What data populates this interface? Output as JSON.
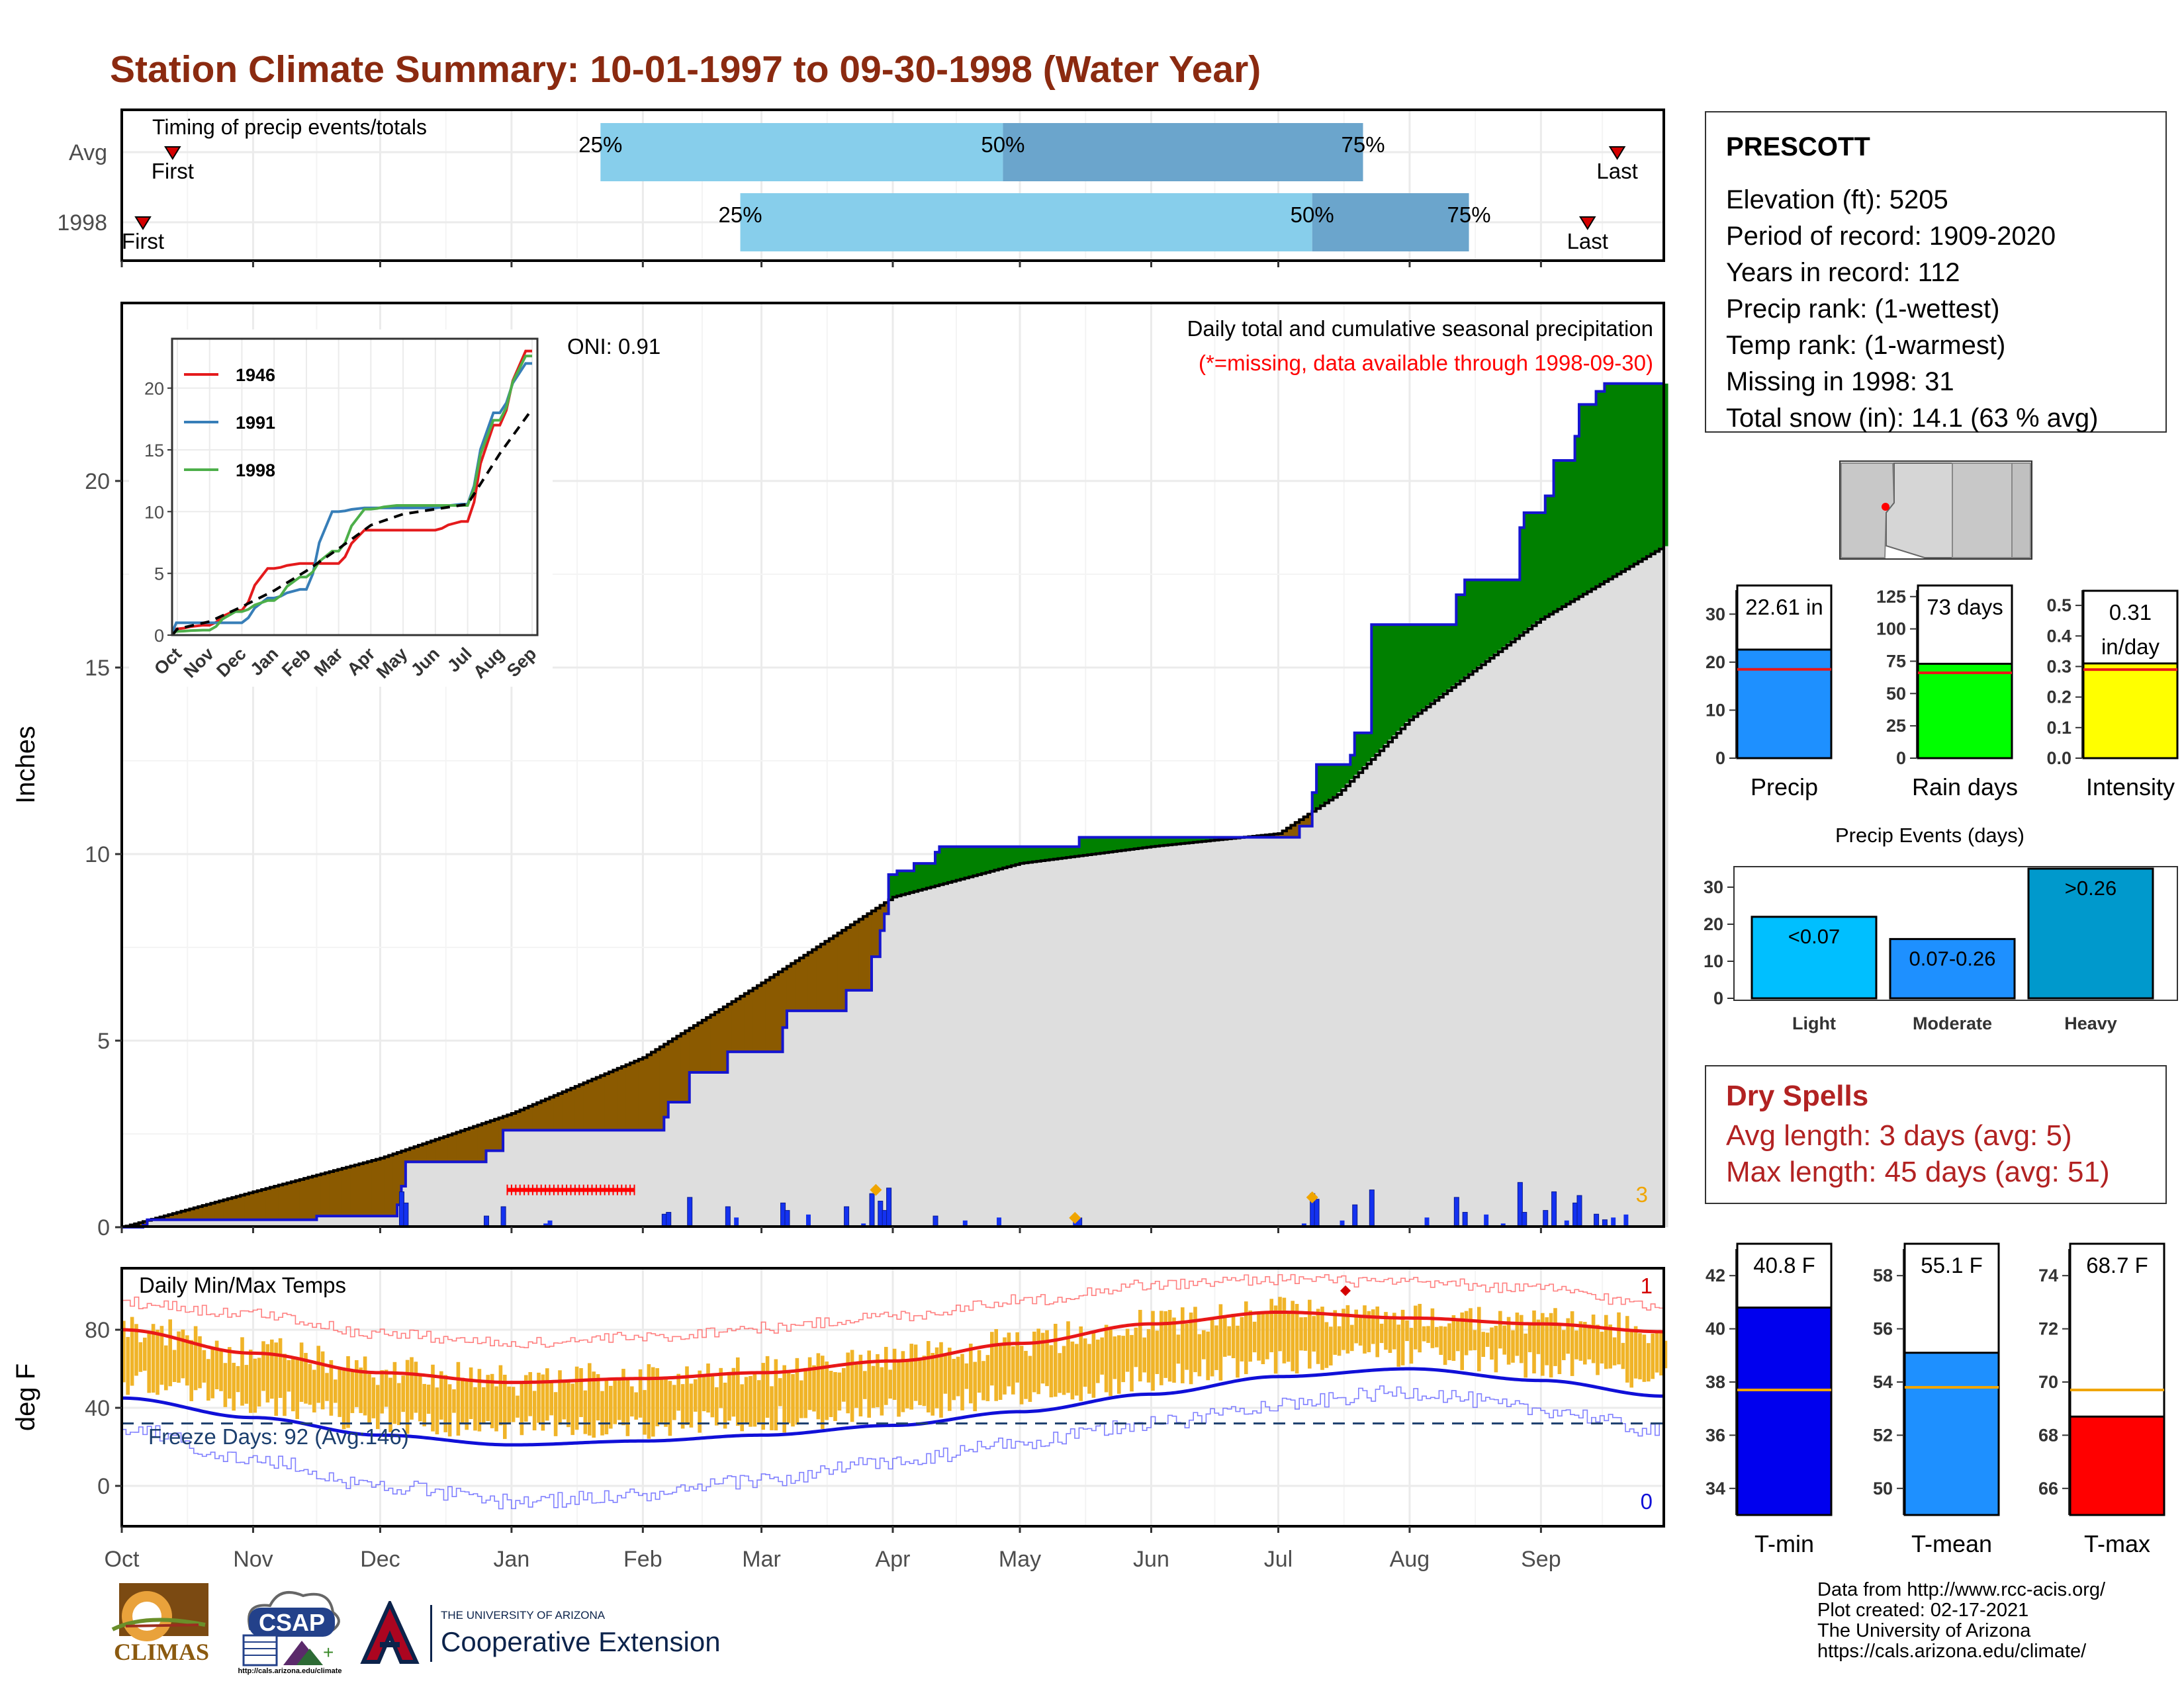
{
  "title": "Station Climate Summary: 10-01-1997 to 09-30-1998 (Water Year)",
  "colors": {
    "title": "#8b2a10",
    "light_blue": "#87ceeb",
    "mid_blue": "#6ba5cc",
    "brown": "#8b5a00",
    "green": "#008000",
    "grey_fill": "#dedede",
    "line_blue": "#1515d0",
    "bar_blue": "#1432f0",
    "orange": "#f0a500",
    "temp_bar": "#f0b428",
    "red": "#ee1c1c",
    "dry_spell": "#b22222"
  },
  "timing_panel": {
    "label": "Timing of precip events/totals",
    "rows": [
      "Avg",
      "1998"
    ],
    "first_label": "First",
    "last_label": "Last",
    "q25": "25%",
    "q50": "50%",
    "q75": "75%"
  },
  "precip_panel": {
    "ylabel": "Inches",
    "y_ticks": [
      "0",
      "5",
      "10",
      "15",
      "20"
    ],
    "subtitle": "Daily total and cumulative seasonal precipitation",
    "missing_note": "(*=missing, data available through 1998-09-30)",
    "oni": "ONI: 0.91",
    "corner_count": "3",
    "inset": {
      "series": [
        "1946",
        "1991",
        "1998"
      ],
      "series_colors": [
        "#e41a1c",
        "#377eb8",
        "#4daf4a"
      ],
      "y_ticks": [
        "0",
        "5",
        "10",
        "15",
        "20"
      ],
      "x_ticks": [
        "Oct",
        "Nov",
        "Dec",
        "Jan",
        "Feb",
        "Mar",
        "Apr",
        "May",
        "Jun",
        "Jul",
        "Aug",
        "Sep"
      ]
    }
  },
  "temp_panel": {
    "ylabel": "deg F",
    "label": "Daily Min/Max Temps",
    "y_ticks": [
      "80",
      "40",
      "0"
    ],
    "freeze_days": "Freeze Days: 92 (Avg:146)",
    "top_count": "1",
    "bottom_count": "0"
  },
  "x_months": [
    "Oct",
    "Nov",
    "Dec",
    "Jan",
    "Feb",
    "Mar",
    "Apr",
    "May",
    "Jun",
    "Jul",
    "Aug",
    "Sep"
  ],
  "station": {
    "name": "PRESCOTT",
    "lines": [
      "Elevation (ft): 5205",
      "Period of record: 1909-2020",
      "Years in record: 112",
      "Precip rank:  (1-wettest)",
      "Temp rank:  (1-warmest)",
      "Missing in 1998: 31",
      "Total snow (in): 14.1 (63 % avg)"
    ]
  },
  "gauges": {
    "precip": {
      "label": "Precip",
      "value_label": "22.61 in",
      "ticks": [
        "0",
        "10",
        "20",
        "30"
      ]
    },
    "rain_days": {
      "label": "Rain days",
      "value_label": "73 days",
      "ticks": [
        "0",
        "25",
        "50",
        "75",
        "100",
        "125"
      ]
    },
    "intensity": {
      "label": "Intensity",
      "value_label_1": "0.31",
      "value_label_2": "in/day",
      "ticks": [
        "0.0",
        "0.1",
        "0.2",
        "0.3",
        "0.4",
        "0.5"
      ]
    }
  },
  "events": {
    "title": "Precip Events (days)",
    "ticks": [
      "0",
      "10",
      "20",
      "30"
    ],
    "bars": [
      {
        "label": "Light",
        "bar_label": "<0.07",
        "color": "#00bfff"
      },
      {
        "label": "Moderate",
        "bar_label": "0.07-0.26",
        "color": "#1e90ff"
      },
      {
        "label": "Heavy",
        "bar_label": ">0.26",
        "color": "#0099cc"
      }
    ]
  },
  "dry_spells": {
    "title": "Dry Spells",
    "avg_length": "Avg length: 3 days (avg: 5)",
    "max_length": "Max length: 45 days (avg: 51)"
  },
  "temp_gauges": {
    "tmin": {
      "label": "T-min",
      "value_label": "40.8 F",
      "ticks": [
        "34",
        "36",
        "38",
        "40",
        "42"
      ]
    },
    "tmean": {
      "label": "T-mean",
      "value_label": "55.1 F",
      "ticks": [
        "50",
        "52",
        "54",
        "56",
        "58"
      ]
    },
    "tmax": {
      "label": "T-max",
      "value_label": "68.7 F",
      "ticks": [
        "66",
        "68",
        "70",
        "72",
        "74"
      ]
    }
  },
  "footer": {
    "lines": [
      "Data from http://www.rcc-acis.org/",
      "Plot created: 02-17-2021",
      "The University of Arizona",
      "https://cals.arizona.edu/climate/"
    ],
    "logos": {
      "climas": "CLIMAS",
      "csap": "CSAP",
      "csap_url": "http://cals.arizona.edu/climate",
      "ua_line1": "THE UNIVERSITY OF ARIZONA",
      "ua_line2": "Cooperative Extension"
    }
  },
  "chart_data": [
    {
      "id": "timing",
      "type": "bar",
      "rows": [
        {
          "name": "Avg",
          "first": "1997-10-13",
          "q25": "1998-01-22",
          "q50": "1998-04-27",
          "q75": "1998-07-21",
          "last": "1998-09-19"
        },
        {
          "name": "1998",
          "first": "1997-10-06",
          "q25": "1998-02-24",
          "q50": "1998-07-09",
          "q75": "1998-08-15",
          "last": "1998-09-12"
        }
      ]
    },
    {
      "id": "precip",
      "type": "area",
      "x_range": [
        "1997-10-01",
        "1998-09-30"
      ],
      "ylim": [
        0,
        25
      ],
      "actual_cumulative": [
        [
          "1997-10-01",
          0
        ],
        [
          "1997-10-06",
          0.05
        ],
        [
          "1997-10-07",
          0.2
        ],
        [
          "1997-11-15",
          0.2
        ],
        [
          "1997-11-16",
          0.3
        ],
        [
          "1997-12-04",
          0.3
        ],
        [
          "1997-12-05",
          0.6
        ],
        [
          "1997-12-06",
          1.1
        ],
        [
          "1997-12-07",
          1.75
        ],
        [
          "1997-12-25",
          1.75
        ],
        [
          "1997-12-26",
          2.05
        ],
        [
          "1997-12-29",
          2.05
        ],
        [
          "1997-12-30",
          2.6
        ],
        [
          "1998-02-05",
          2.6
        ],
        [
          "1998-02-06",
          2.95
        ],
        [
          "1998-02-07",
          3.35
        ],
        [
          "1998-02-11",
          3.35
        ],
        [
          "1998-02-12",
          4.15
        ],
        [
          "1998-02-20",
          4.15
        ],
        [
          "1998-02-21",
          4.7
        ],
        [
          "1998-03-05",
          4.7
        ],
        [
          "1998-03-06",
          5.35
        ],
        [
          "1998-03-07",
          5.8
        ],
        [
          "1998-03-20",
          5.8
        ],
        [
          "1998-03-21",
          6.35
        ],
        [
          "1998-03-26",
          6.35
        ],
        [
          "1998-03-27",
          7.25
        ],
        [
          "1998-03-29",
          7.95
        ],
        [
          "1998-03-30",
          8.4
        ],
        [
          "1998-03-31",
          9.45
        ],
        [
          "1998-04-01",
          9.45
        ],
        [
          "1998-04-02",
          9.55
        ],
        [
          "1998-04-05",
          9.55
        ],
        [
          "1998-04-06",
          9.75
        ],
        [
          "1998-04-10",
          9.75
        ],
        [
          "1998-04-11",
          10.05
        ],
        [
          "1998-04-12",
          10.2
        ],
        [
          "1998-05-14",
          10.2
        ],
        [
          "1998-05-15",
          10.45
        ],
        [
          "1998-07-05",
          10.45
        ],
        [
          "1998-07-06",
          10.75
        ],
        [
          "1998-07-08",
          10.75
        ],
        [
          "1998-07-09",
          11.65
        ],
        [
          "1998-07-10",
          12.4
        ],
        [
          "1998-07-17",
          12.4
        ],
        [
          "1998-07-18",
          12.65
        ],
        [
          "1998-07-19",
          13.25
        ],
        [
          "1998-07-22",
          13.25
        ],
        [
          "1998-07-23",
          16.15
        ],
        [
          "1998-08-11",
          16.15
        ],
        [
          "1998-08-12",
          16.95
        ],
        [
          "1998-08-13",
          16.95
        ],
        [
          "1998-08-14",
          17.35
        ],
        [
          "1998-08-26",
          17.35
        ],
        [
          "1998-08-27",
          18.75
        ],
        [
          "1998-08-28",
          19.15
        ],
        [
          "1998-09-01",
          19.15
        ],
        [
          "1998-09-02",
          19.6
        ],
        [
          "1998-09-03",
          19.6
        ],
        [
          "1998-09-04",
          20.55
        ],
        [
          "1998-09-08",
          20.55
        ],
        [
          "1998-09-09",
          21.2
        ],
        [
          "1998-09-10",
          22.05
        ],
        [
          "1998-09-13",
          22.05
        ],
        [
          "1998-09-14",
          22.4
        ],
        [
          "1998-09-16",
          22.61
        ],
        [
          "1998-09-30",
          22.61
        ]
      ],
      "normal_cumulative": [
        [
          "1997-10-01",
          0
        ],
        [
          "1997-11-01",
          0.95
        ],
        [
          "1997-12-01",
          1.85
        ],
        [
          "1998-01-01",
          3.05
        ],
        [
          "1998-02-01",
          4.55
        ],
        [
          "1998-03-01",
          6.55
        ],
        [
          "1998-04-01",
          8.85
        ],
        [
          "1998-05-01",
          9.75
        ],
        [
          "1998-06-01",
          10.2
        ],
        [
          "1998-07-01",
          10.55
        ],
        [
          "1998-07-15",
          11.6
        ],
        [
          "1998-08-01",
          13.6
        ],
        [
          "1998-09-01",
          16.3
        ],
        [
          "1998-09-30",
          18.25
        ]
      ],
      "daily_precip": [
        [
          "1997-12-06",
          0.95
        ],
        [
          "1997-12-07",
          0.65
        ],
        [
          "1997-12-26",
          0.3
        ],
        [
          "1997-12-30",
          0.55
        ],
        [
          "1998-02-06",
          0.35
        ],
        [
          "1998-02-07",
          0.4
        ],
        [
          "1998-02-12",
          0.8
        ],
        [
          "1998-02-21",
          0.55
        ],
        [
          "1998-03-06",
          0.65
        ],
        [
          "1998-03-07",
          0.45
        ],
        [
          "1998-03-21",
          0.55
        ],
        [
          "1998-03-27",
          0.9
        ],
        [
          "1998-03-29",
          0.7
        ],
        [
          "1998-03-30",
          0.45
        ],
        [
          "1998-03-31",
          1.05
        ],
        [
          "1998-04-11",
          0.3
        ],
        [
          "1998-05-15",
          0.25
        ],
        [
          "1998-07-09",
          0.9
        ],
        [
          "1998-07-10",
          0.75
        ],
        [
          "1998-07-19",
          0.6
        ],
        [
          "1998-07-23",
          1.0
        ],
        [
          "1998-08-12",
          0.8
        ],
        [
          "1998-08-14",
          0.4
        ],
        [
          "1998-08-27",
          1.2
        ],
        [
          "1998-08-28",
          0.4
        ],
        [
          "1998-09-02",
          0.45
        ],
        [
          "1998-09-04",
          0.95
        ],
        [
          "1998-09-09",
          0.65
        ],
        [
          "1998-09-10",
          0.85
        ],
        [
          "1998-09-14",
          0.35
        ],
        [
          "1998-09-16",
          0.2
        ]
      ],
      "missing_days": [
        "1997-12-31",
        "1998-01-30"
      ]
    },
    {
      "id": "inset",
      "type": "line",
      "months": [
        "Oct",
        "Nov",
        "Dec",
        "Jan",
        "Feb",
        "Mar",
        "Apr",
        "May",
        "Jun",
        "Jul",
        "Aug",
        "Sep"
      ],
      "ylim": [
        0,
        24
      ],
      "series": [
        {
          "name": "1946",
          "values": [
            0.5,
            0.8,
            2.0,
            5.4,
            5.8,
            5.8,
            8.5,
            8.5,
            8.5,
            9.2,
            17.0,
            23.0
          ]
        },
        {
          "name": "1991",
          "values": [
            1.0,
            1.0,
            1.0,
            3.0,
            3.7,
            10.0,
            10.3,
            10.3,
            10.3,
            10.6,
            18.0,
            22.0
          ]
        },
        {
          "name": "1998",
          "values": [
            0.3,
            0.4,
            1.9,
            2.8,
            4.7,
            6.8,
            10.2,
            10.5,
            10.5,
            10.5,
            17.4,
            22.6
          ]
        },
        {
          "name": "normal",
          "values": [
            0.5,
            1.1,
            2.3,
            3.6,
            5.2,
            7.0,
            8.9,
            9.8,
            10.2,
            10.6,
            14.7,
            18.3
          ]
        }
      ]
    },
    {
      "id": "temps",
      "type": "line",
      "x_range": [
        "1997-10-01",
        "1998-09-30"
      ],
      "ylim": [
        -20,
        110
      ],
      "normal_max": [
        [
          "1997-10-01",
          80
        ],
        [
          "1997-11-01",
          68
        ],
        [
          "1997-12-01",
          58
        ],
        [
          "1998-01-01",
          53
        ],
        [
          "1998-02-01",
          55
        ],
        [
          "1998-03-01",
          58
        ],
        [
          "1998-04-01",
          64
        ],
        [
          "1998-05-01",
          73
        ],
        [
          "1998-06-01",
          83
        ],
        [
          "1998-07-01",
          89
        ],
        [
          "1998-08-01",
          86
        ],
        [
          "1998-09-01",
          83
        ],
        [
          "1998-09-30",
          79
        ]
      ],
      "normal_min": [
        [
          "1997-10-01",
          45
        ],
        [
          "1997-11-01",
          35
        ],
        [
          "1997-12-01",
          26
        ],
        [
          "1998-01-01",
          21
        ],
        [
          "1998-02-01",
          23
        ],
        [
          "1998-03-01",
          26
        ],
        [
          "1998-04-01",
          31
        ],
        [
          "1998-05-01",
          38
        ],
        [
          "1998-06-01",
          47
        ],
        [
          "1998-07-01",
          56
        ],
        [
          "1998-08-01",
          60
        ],
        [
          "1998-09-01",
          54
        ],
        [
          "1998-09-30",
          46
        ]
      ],
      "record_max": [
        [
          "1997-10-01",
          94
        ],
        [
          "1997-11-01",
          88
        ],
        [
          "1997-12-01",
          78
        ],
        [
          "1998-01-01",
          73
        ],
        [
          "1998-02-01",
          76
        ],
        [
          "1998-03-01",
          81
        ],
        [
          "1998-04-01",
          87
        ],
        [
          "1998-05-01",
          95
        ],
        [
          "1998-06-01",
          103
        ],
        [
          "1998-07-01",
          106
        ],
        [
          "1998-08-01",
          104
        ],
        [
          "1998-09-01",
          101
        ],
        [
          "1998-09-30",
          92
        ]
      ],
      "record_min": [
        [
          "1997-10-01",
          30
        ],
        [
          "1997-11-01",
          13
        ],
        [
          "1997-12-01",
          0
        ],
        [
          "1998-01-01",
          -8
        ],
        [
          "1998-02-01",
          -5
        ],
        [
          "1998-03-01",
          3
        ],
        [
          "1998-04-01",
          12
        ],
        [
          "1998-05-01",
          22
        ],
        [
          "1998-06-01",
          32
        ],
        [
          "1998-07-01",
          42
        ],
        [
          "1998-08-01",
          48
        ],
        [
          "1998-09-01",
          39
        ],
        [
          "1998-09-30",
          28
        ]
      ],
      "freeze_line": 32
    },
    {
      "id": "precip_gauge",
      "type": "bar",
      "ylim": [
        0,
        35
      ],
      "values": [
        22.61
      ],
      "normal": [
        18.5
      ]
    },
    {
      "id": "rain_days_gauge",
      "type": "bar",
      "ylim": [
        0,
        130
      ],
      "values": [
        73
      ],
      "normal": [
        66
      ]
    },
    {
      "id": "intensity_gauge",
      "type": "bar",
      "ylim": [
        0,
        0.55
      ],
      "values": [
        0.31
      ],
      "normal": [
        0.29
      ]
    },
    {
      "id": "events",
      "type": "bar",
      "categories": [
        "Light",
        "Moderate",
        "Heavy"
      ],
      "values": [
        22,
        16,
        35
      ],
      "ylim": [
        0,
        35
      ]
    },
    {
      "id": "tmin_gauge",
      "type": "bar",
      "ylim": [
        33,
        43
      ],
      "values": [
        40.8
      ],
      "normal": [
        37.7
      ]
    },
    {
      "id": "tmean_gauge",
      "type": "bar",
      "ylim": [
        49,
        59
      ],
      "values": [
        55.1
      ],
      "normal": [
        53.8
      ]
    },
    {
      "id": "tmax_gauge",
      "type": "bar",
      "ylim": [
        65,
        75
      ],
      "values": [
        68.7
      ],
      "normal": [
        69.7
      ]
    }
  ]
}
